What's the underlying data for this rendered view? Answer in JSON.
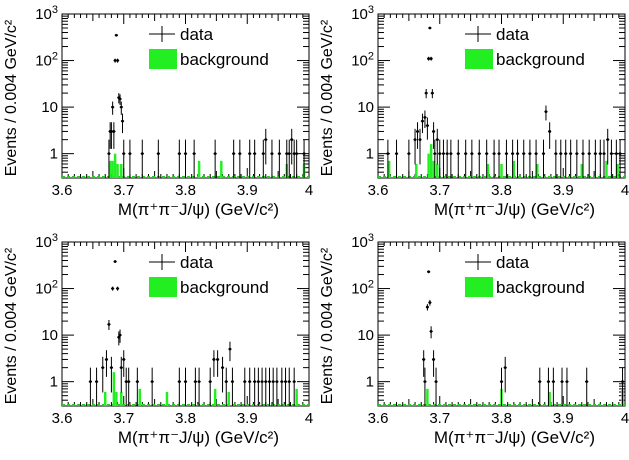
{
  "chart_data": [
    {
      "type": "scatter",
      "title": "",
      "xlabel": "M(π⁺π⁻J/ψ) (GeV/c²)",
      "ylabel": "Events / 0.004 GeV/c²",
      "xlim": [
        3.6,
        4.0
      ],
      "ylim": [
        0.3,
        1000
      ],
      "yscale": "log",
      "x_ticks": [
        "3.6",
        "3.7",
        "3.8",
        "3.9",
        "4"
      ],
      "legend": [
        "data",
        "background"
      ],
      "legend_position": "top-right",
      "series": [
        {
          "name": "data",
          "points": [
            [
              3.676,
              1
            ],
            [
              3.678,
              3
            ],
            [
              3.68,
              3
            ],
            [
              3.682,
              10
            ],
            [
              3.684,
              3
            ],
            [
              3.686,
              100
            ],
            [
              3.688,
              350
            ],
            [
              3.69,
              100
            ],
            [
              3.692,
              16
            ],
            [
              3.694,
              15
            ],
            [
              3.696,
              10
            ],
            [
              3.698,
              5
            ],
            [
              3.7,
              1
            ],
            [
              3.71,
              1
            ],
            [
              3.73,
              1
            ],
            [
              3.756,
              1
            ],
            [
              3.79,
              1
            ],
            [
              3.8,
              1
            ],
            [
              3.814,
              1
            ],
            [
              3.848,
              1
            ],
            [
              3.878,
              1
            ],
            [
              3.888,
              1
            ],
            [
              3.904,
              1
            ],
            [
              3.912,
              1
            ],
            [
              3.926,
              1
            ],
            [
              3.93,
              2
            ],
            [
              3.94,
              1
            ],
            [
              3.952,
              1
            ],
            [
              3.964,
              1
            ],
            [
              3.968,
              1
            ],
            [
              3.972,
              2
            ],
            [
              3.976,
              1
            ],
            [
              3.98,
              1
            ],
            [
              3.992,
              1
            ]
          ]
        },
        {
          "name": "background",
          "bins": [
            [
              3.678,
              0.7
            ],
            [
              3.682,
              0.7
            ],
            [
              3.686,
              1
            ],
            [
              3.69,
              0.6
            ],
            [
              3.696,
              0.6
            ],
            [
              3.822,
              0.7
            ],
            [
              3.858,
              0.7
            ],
            [
              3.964,
              0.6
            ],
            [
              3.992,
              0.6
            ]
          ]
        }
      ]
    },
    {
      "type": "scatter",
      "title": "",
      "xlabel": "M(π⁺π⁻J/ψ) (GeV/c²)",
      "ylabel": "Events / 0.004 GeV/c²",
      "xlim": [
        3.6,
        4.0
      ],
      "ylim": [
        0.3,
        1000
      ],
      "yscale": "log",
      "x_ticks": [
        "3.6",
        "3.7",
        "3.8",
        "3.9",
        "4"
      ],
      "legend": [
        "data",
        "background"
      ],
      "legend_position": "top-right",
      "series": [
        {
          "name": "data",
          "points": [
            [
              3.616,
              1
            ],
            [
              3.63,
              1
            ],
            [
              3.65,
              1
            ],
            [
              3.66,
              2
            ],
            [
              3.664,
              3
            ],
            [
              3.668,
              2
            ],
            [
              3.672,
              5
            ],
            [
              3.676,
              6
            ],
            [
              3.678,
              20
            ],
            [
              3.68,
              4
            ],
            [
              3.682,
              110
            ],
            [
              3.684,
              500
            ],
            [
              3.686,
              110
            ],
            [
              3.688,
              20
            ],
            [
              3.69,
              3
            ],
            [
              3.692,
              1
            ],
            [
              3.696,
              2
            ],
            [
              3.7,
              1
            ],
            [
              3.706,
              1
            ],
            [
              3.712,
              1
            ],
            [
              3.718,
              1
            ],
            [
              3.73,
              1
            ],
            [
              3.742,
              1
            ],
            [
              3.752,
              1
            ],
            [
              3.764,
              1
            ],
            [
              3.776,
              1
            ],
            [
              3.788,
              1
            ],
            [
              3.796,
              1
            ],
            [
              3.808,
              1
            ],
            [
              3.818,
              1
            ],
            [
              3.826,
              1
            ],
            [
              3.836,
              1
            ],
            [
              3.846,
              1
            ],
            [
              3.856,
              1
            ],
            [
              3.868,
              1
            ],
            [
              3.872,
              8
            ],
            [
              3.878,
              3
            ],
            [
              3.888,
              1
            ],
            [
              3.896,
              1
            ],
            [
              3.904,
              1
            ],
            [
              3.912,
              1
            ],
            [
              3.922,
              1
            ],
            [
              3.932,
              1
            ],
            [
              3.942,
              1
            ],
            [
              3.952,
              1
            ],
            [
              3.96,
              1
            ],
            [
              3.966,
              1
            ],
            [
              3.972,
              2
            ],
            [
              3.978,
              1
            ],
            [
              3.986,
              1
            ],
            [
              3.992,
              1
            ]
          ]
        },
        {
          "name": "background",
          "bins": [
            [
              3.618,
              0.7
            ],
            [
              3.662,
              0.6
            ],
            [
              3.682,
              1
            ],
            [
              3.686,
              1.6
            ],
            [
              3.69,
              0.7
            ],
            [
              3.696,
              0.6
            ],
            [
              3.778,
              0.6
            ],
            [
              3.8,
              0.6
            ],
            [
              3.82,
              0.7
            ],
            [
              3.858,
              0.6
            ],
            [
              3.93,
              0.6
            ],
            [
              3.97,
              0.7
            ],
            [
              3.988,
              0.6
            ]
          ]
        }
      ]
    },
    {
      "type": "scatter",
      "title": "",
      "xlabel": "M(π⁺π⁻J/ψ) (GeV/c²)",
      "ylabel": "Events / 0.004 GeV/c²",
      "xlim": [
        3.6,
        4.0
      ],
      "ylim": [
        0.3,
        1000
      ],
      "yscale": "log",
      "x_ticks": [
        "3.6",
        "3.7",
        "3.8",
        "3.9",
        "4"
      ],
      "legend": [
        "data",
        "background"
      ],
      "legend_position": "top-right",
      "series": [
        {
          "name": "data",
          "points": [
            [
              3.646,
              1
            ],
            [
              3.656,
              1
            ],
            [
              3.666,
              2
            ],
            [
              3.672,
              3
            ],
            [
              3.676,
              17
            ],
            [
              3.68,
              2
            ],
            [
              3.682,
              100
            ],
            [
              3.686,
              380
            ],
            [
              3.69,
              100
            ],
            [
              3.692,
              9
            ],
            [
              3.694,
              10
            ],
            [
              3.696,
              2
            ],
            [
              3.7,
              3
            ],
            [
              3.704,
              1
            ],
            [
              3.708,
              1
            ],
            [
              3.722,
              1
            ],
            [
              3.746,
              1
            ],
            [
              3.79,
              1
            ],
            [
              3.8,
              1
            ],
            [
              3.816,
              1
            ],
            [
              3.822,
              1
            ],
            [
              3.84,
              1
            ],
            [
              3.846,
              3
            ],
            [
              3.852,
              3
            ],
            [
              3.86,
              2
            ],
            [
              3.866,
              1
            ],
            [
              3.872,
              5
            ],
            [
              3.876,
              1
            ],
            [
              3.896,
              1
            ],
            [
              3.904,
              1
            ],
            [
              3.912,
              1
            ],
            [
              3.918,
              1
            ],
            [
              3.924,
              1
            ],
            [
              3.93,
              1
            ],
            [
              3.936,
              1
            ],
            [
              3.942,
              1
            ],
            [
              3.948,
              1
            ],
            [
              3.956,
              1
            ],
            [
              3.962,
              1
            ],
            [
              3.968,
              1
            ],
            [
              3.976,
              1
            ]
          ]
        },
        {
          "name": "background",
          "bins": [
            [
              3.67,
              0.6
            ],
            [
              3.684,
              1.6
            ],
            [
              3.688,
              0.6
            ],
            [
              3.696,
              0.6
            ],
            [
              3.726,
              0.7
            ],
            [
              3.77,
              0.6
            ],
            [
              3.848,
              0.7
            ],
            [
              3.87,
              0.6
            ],
            [
              3.98,
              0.7
            ]
          ]
        }
      ]
    },
    {
      "type": "scatter",
      "title": "",
      "xlabel": "M(π⁺π⁻J/ψ) (GeV/c²)",
      "ylabel": "Events / 0.004 GeV/c²",
      "xlim": [
        3.6,
        4.0
      ],
      "ylim": [
        0.3,
        1000
      ],
      "yscale": "log",
      "x_ticks": [
        "3.6",
        "3.7",
        "3.8",
        "3.9",
        "4"
      ],
      "legend": [
        "data",
        "background"
      ],
      "legend_position": "top-right",
      "series": [
        {
          "name": "data",
          "points": [
            [
              3.674,
              3
            ],
            [
              3.676,
              1
            ],
            [
              3.68,
              40
            ],
            [
              3.682,
              230
            ],
            [
              3.684,
              50
            ],
            [
              3.686,
              12
            ],
            [
              3.69,
              3
            ],
            [
              3.694,
              1
            ],
            [
              3.8,
              1
            ],
            [
              3.806,
              2
            ],
            [
              3.862,
              1
            ],
            [
              3.876,
              1
            ],
            [
              3.884,
              1
            ],
            [
              3.898,
              1
            ],
            [
              3.906,
              1
            ],
            [
              3.938,
              1
            ],
            [
              3.996,
              1
            ]
          ]
        },
        {
          "name": "background",
          "bins": [
            [
              3.68,
              0.7
            ],
            [
              3.8,
              0.7
            ],
            [
              3.878,
              0.6
            ],
            [
              3.996,
              0.7
            ]
          ]
        }
      ]
    }
  ]
}
